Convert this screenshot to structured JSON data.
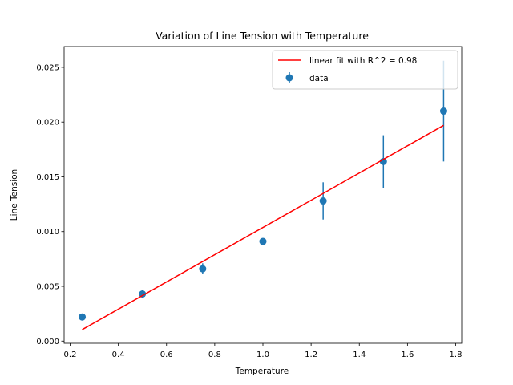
{
  "chart_data": {
    "type": "scatter",
    "title": "Variation of Line Tension with Temperature",
    "xlabel": "Temperature",
    "ylabel": "Line Tension",
    "xlim": [
      0.175,
      1.825
    ],
    "ylim": [
      -0.0002,
      0.0269
    ],
    "xticks": [
      0.2,
      0.4,
      0.6,
      0.8,
      1.0,
      1.2,
      1.4,
      1.6,
      1.8
    ],
    "xtick_labels": [
      "0.2",
      "0.4",
      "0.6",
      "0.8",
      "1.0",
      "1.2",
      "1.4",
      "1.6",
      "1.8"
    ],
    "yticks": [
      0.0,
      0.005,
      0.01,
      0.015,
      0.02,
      0.025
    ],
    "ytick_labels": [
      "0.000",
      "0.005",
      "0.010",
      "0.015",
      "0.020",
      "0.025"
    ],
    "grid": false,
    "legend_position": "top-right",
    "series": [
      {
        "name": "data",
        "kind": "errorbar-scatter",
        "color": "#1f77b4",
        "x": [
          0.25,
          0.5,
          0.75,
          1.0,
          1.25,
          1.5,
          1.75
        ],
        "y": [
          0.0022,
          0.0043,
          0.0066,
          0.0091,
          0.0128,
          0.0164,
          0.021
        ],
        "yerr": [
          0.0001,
          0.0004,
          0.0005,
          0.0002,
          0.0017,
          0.0024,
          0.0046
        ]
      },
      {
        "name": "linear fit with R^2 = 0.98",
        "kind": "line",
        "color": "#ff0000",
        "x": [
          0.25,
          1.75
        ],
        "y": [
          0.00105,
          0.0197
        ]
      }
    ]
  }
}
